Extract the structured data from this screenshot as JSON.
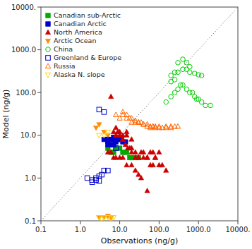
{
  "chart_data": {
    "type": "scatter",
    "xlabel": "Observations (ng/g)",
    "ylabel": "Model (ng/g)",
    "log": true,
    "grid": false,
    "legend": "upper left",
    "xlim": [
      0.1,
      10000.0
    ],
    "ylim": [
      0.1,
      10000.0
    ],
    "xticks": [
      0.1,
      {
        "value": 1,
        "label": "1.0"
      },
      {
        "value": 10,
        "label": "10.0"
      },
      {
        "value": 100,
        "label": "100.0"
      },
      {
        "value": 1000,
        "label": "1000.0"
      },
      {
        "value": 10000,
        "label": "10000."
      }
    ],
    "yticks": [
      0.1,
      {
        "value": 1,
        "label": "1.0"
      },
      {
        "value": 10,
        "label": "10.0"
      },
      {
        "value": 100,
        "label": "100.0"
      },
      {
        "value": 1000,
        "label": "1000.0"
      },
      {
        "value": 10000,
        "label": "10000."
      }
    ],
    "series": [
      {
        "type": "line",
        "color": "gray",
        "line_style": "dotted",
        "x": [
          0.1,
          10000.0
        ],
        "values": [
          0.1,
          10000.0
        ]
      },
      {
        "name": "Canadian sub-Arctic",
        "color": "#00AA00",
        "marker": "square",
        "x": [
          5,
          6,
          7,
          8,
          10,
          12,
          15,
          18,
          20,
          25,
          30
        ],
        "values": [
          5,
          4,
          4,
          5,
          5,
          4,
          4,
          3,
          3,
          3,
          3
        ]
      },
      {
        "name": "Canadian Arctic",
        "color": "#0000CC",
        "marker": "square",
        "x": [
          4,
          5,
          5,
          6,
          7,
          8,
          9,
          10,
          11,
          12,
          14,
          5,
          6,
          7,
          8
        ],
        "values": [
          8,
          7,
          8,
          8,
          9,
          9,
          8,
          8,
          8,
          7,
          7,
          6,
          6,
          6,
          7
        ]
      },
      {
        "name": "North America",
        "color": "#CC0000",
        "marker": "triangle-up",
        "x": [
          6,
          7,
          8,
          9,
          10,
          10,
          12,
          15,
          18,
          20,
          25,
          30,
          40,
          50,
          60,
          80,
          100,
          120,
          150,
          12,
          14,
          16,
          20,
          25,
          30,
          35,
          40,
          50,
          60,
          70,
          80,
          100,
          8,
          9,
          12,
          15,
          20,
          5,
          6,
          7,
          8,
          10,
          12,
          15,
          20,
          25,
          30,
          35,
          50,
          70
        ],
        "values": [
          80,
          12,
          10,
          12,
          10,
          12,
          8,
          10,
          5,
          4,
          3,
          3,
          4,
          3,
          4,
          3,
          2,
          2,
          1.5,
          8,
          6,
          5,
          5,
          4,
          3,
          4,
          3,
          3,
          2,
          2,
          3,
          4,
          15,
          12,
          10,
          12,
          8,
          4,
          4,
          3,
          3,
          3,
          3,
          2,
          2,
          1.5,
          1.2,
          1.0,
          0.5,
          4
        ]
      },
      {
        "name": "Arctic Ocean",
        "color": "#FF8C00",
        "marker": "triangle-down",
        "x": [
          2.5,
          3,
          4,
          5,
          3,
          4,
          5,
          6
        ],
        "values": [
          15,
          18,
          12,
          10,
          0.12,
          0.12,
          0.13,
          0.12
        ]
      },
      {
        "name": "China",
        "color": "#00CC00",
        "marker": "circle-open",
        "x": [
          150,
          200,
          250,
          300,
          350,
          400,
          500,
          600,
          700,
          800,
          900,
          1000,
          1200,
          1500,
          2000,
          200,
          250,
          300,
          400,
          500,
          600,
          800,
          1000,
          1200,
          300,
          400,
          500,
          600,
          200,
          250
        ],
        "values": [
          60,
          80,
          100,
          120,
          150,
          150,
          120,
          100,
          100,
          80,
          70,
          70,
          60,
          50,
          50,
          250,
          300,
          300,
          350,
          350,
          300,
          280,
          260,
          250,
          500,
          600,
          500,
          400,
          180,
          200
        ]
      },
      {
        "name": "Greenland & Europe",
        "color": "#0000CC",
        "marker": "square-open",
        "x": [
          1.5,
          2,
          2.5,
          3,
          3.5,
          4,
          5,
          3,
          4,
          5,
          6,
          7,
          8,
          2,
          2.5,
          3
        ],
        "values": [
          1.0,
          0.9,
          1.0,
          1.1,
          1.2,
          1.5,
          1.5,
          40,
          35,
          8,
          7,
          6,
          5,
          0.8,
          0.9,
          0.85
        ]
      },
      {
        "name": "Russia",
        "color": "#FF6600",
        "marker": "triangle-up-open",
        "x": [
          8,
          10,
          12,
          15,
          20,
          25,
          30,
          40,
          50,
          60,
          70,
          80,
          100,
          150,
          200,
          250,
          300,
          12,
          15,
          18,
          20,
          25,
          30,
          35,
          40,
          50,
          60,
          70,
          80,
          100,
          120,
          150,
          200
        ],
        "values": [
          30,
          25,
          30,
          25,
          20,
          20,
          20,
          18,
          16,
          16,
          16,
          16,
          16,
          16,
          16,
          16,
          16,
          35,
          30,
          25,
          25,
          22,
          20,
          20,
          18,
          18,
          15,
          16,
          15,
          15,
          15,
          15,
          15
        ]
      },
      {
        "name": "Alaska N. slope",
        "color": "#FFD700",
        "marker": "triangle-down-open",
        "x": [
          3,
          3.5,
          4,
          5,
          6,
          7,
          3,
          4,
          5
        ],
        "values": [
          0.12,
          0.11,
          0.12,
          0.12,
          0.11,
          0.12,
          10,
          10,
          12
        ]
      }
    ]
  }
}
